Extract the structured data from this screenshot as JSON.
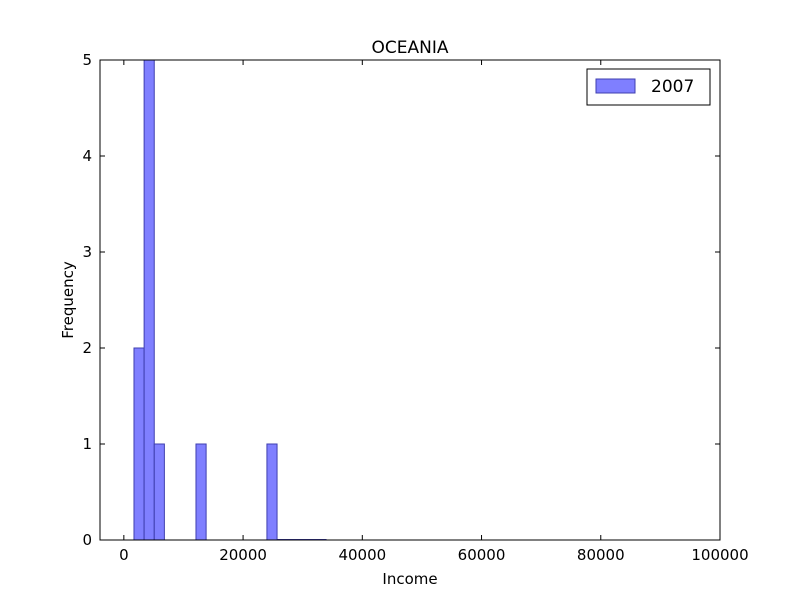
{
  "chart_data": {
    "type": "bar",
    "subtype": "histogram",
    "title": "OCEANIA",
    "xlabel": "Income",
    "ylabel": "Frequency",
    "xlim": [
      -4000,
      100000
    ],
    "ylim": [
      0,
      5
    ],
    "xticks": [
      0,
      20000,
      40000,
      60000,
      80000,
      100000
    ],
    "yticks": [
      0,
      1,
      2,
      3,
      4,
      5
    ],
    "grid": false,
    "legend_position": "top-right",
    "colors": {
      "bar_fill": "#7f7fff",
      "bar_edge": "#3f3faf"
    },
    "series": [
      {
        "name": "2007",
        "bins": [
          {
            "x0": 1700,
            "x1": 3400,
            "count": 2
          },
          {
            "x0": 3400,
            "x1": 5100,
            "count": 5
          },
          {
            "x0": 5100,
            "x1": 6800,
            "count": 1
          },
          {
            "x0": 12100,
            "x1": 13800,
            "count": 1
          },
          {
            "x0": 24000,
            "x1": 25700,
            "count": 1
          }
        ]
      }
    ]
  }
}
